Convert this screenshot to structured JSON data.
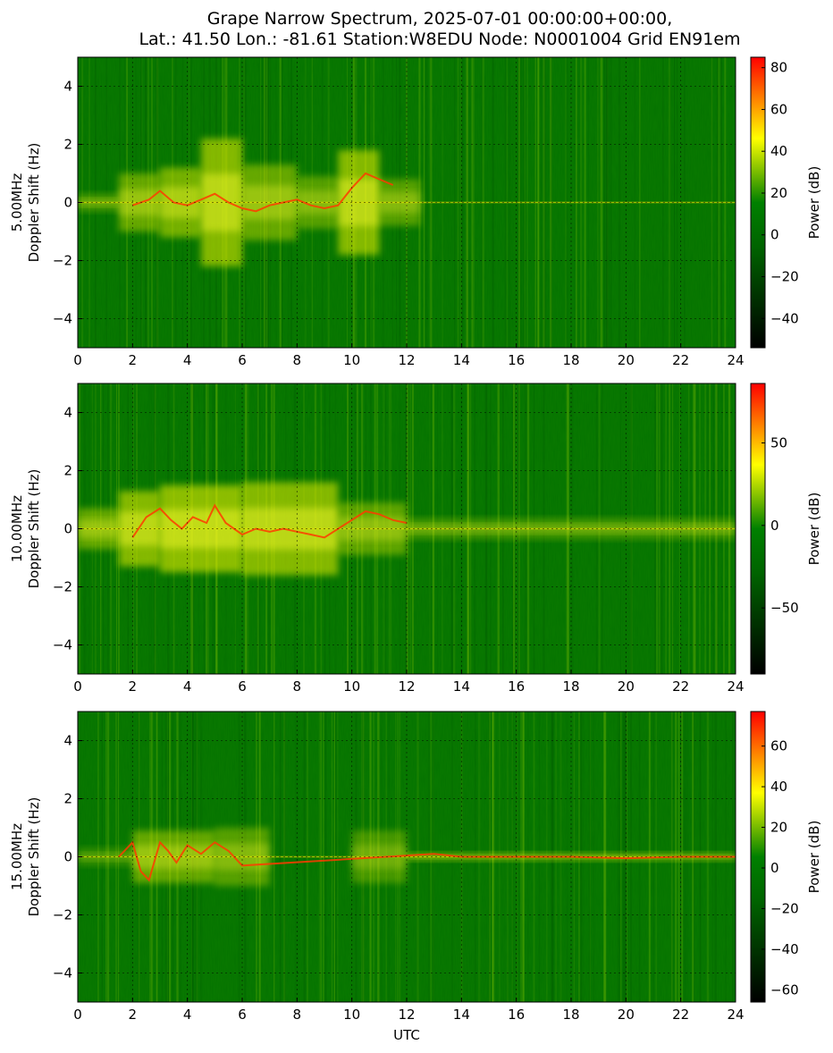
{
  "title_lines": [
    "Grape Narrow Spectrum, 2025-07-01 00:00:00+00:00,",
    "Lat.: 41.50 Lon.: -81.61 Station:W8EDU Node: N0001004 Grid EN91em"
  ],
  "chart_data": [
    {
      "type": "heatmap",
      "ylabel_lines": [
        "5.00MHz",
        "Doppler Shift (Hz)"
      ],
      "xlabel": "",
      "xlim": [
        0,
        24
      ],
      "ylim": [
        -5,
        5
      ],
      "xticks": [
        0,
        2,
        4,
        6,
        8,
        10,
        12,
        14,
        16,
        18,
        20,
        22,
        24
      ],
      "yticks": [
        -4,
        -2,
        0,
        2,
        4
      ],
      "grid": true,
      "colorbar": {
        "label": "Power (dB)",
        "range": [
          -54,
          85
        ],
        "ticks": [
          -40,
          -20,
          0,
          20,
          40,
          60,
          80
        ]
      },
      "colors": {
        "low": "#000000",
        "mid": "#008000",
        "high1": "#ffff00",
        "high2": "#ff0000"
      }
    },
    {
      "type": "heatmap",
      "ylabel_lines": [
        "10.00MHz",
        "Doppler Shift (Hz)"
      ],
      "xlabel": "",
      "xlim": [
        0,
        24
      ],
      "ylim": [
        -5,
        5
      ],
      "xticks": [
        0,
        2,
        4,
        6,
        8,
        10,
        12,
        14,
        16,
        18,
        20,
        22,
        24
      ],
      "yticks": [
        -4,
        -2,
        0,
        2,
        4
      ],
      "grid": true,
      "colorbar": {
        "label": "Power (dB)",
        "range": [
          -90,
          86
        ],
        "ticks": [
          -50,
          0,
          50
        ]
      },
      "colors": {
        "low": "#000000",
        "mid": "#008000",
        "high1": "#ffff00",
        "high2": "#ff0000"
      }
    },
    {
      "type": "heatmap",
      "ylabel_lines": [
        "15.00MHz",
        "Doppler Shift (Hz)"
      ],
      "xlabel": "UTC",
      "xlim": [
        0,
        24
      ],
      "ylim": [
        -5,
        5
      ],
      "xticks": [
        0,
        2,
        4,
        6,
        8,
        10,
        12,
        14,
        16,
        18,
        20,
        22,
        24
      ],
      "yticks": [
        -4,
        -2,
        0,
        2,
        4
      ],
      "grid": true,
      "colorbar": {
        "label": "Power (dB)",
        "range": [
          -66,
          77
        ],
        "ticks": [
          -60,
          -40,
          -20,
          0,
          20,
          40,
          60
        ]
      },
      "colors": {
        "low": "#000000",
        "mid": "#008000",
        "high1": "#ffff00",
        "high2": "#ff0000"
      }
    }
  ]
}
